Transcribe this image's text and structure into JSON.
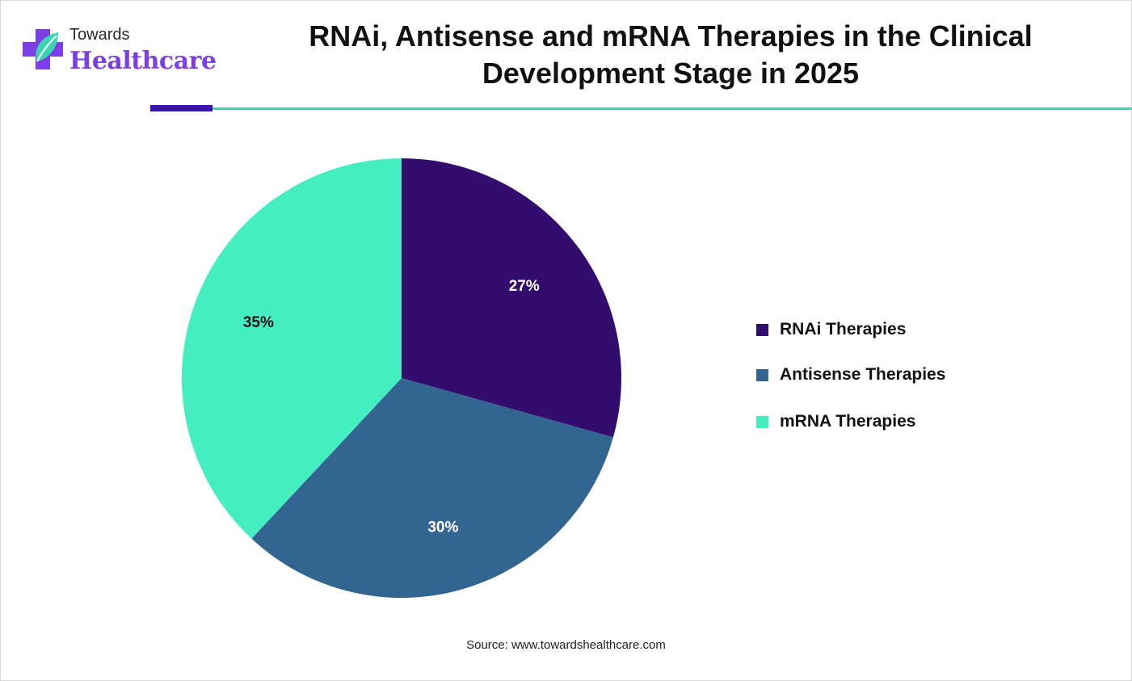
{
  "brand": {
    "line1": "Towards",
    "line2": "Healthcare"
  },
  "title": "RNAi, Antisense and mRNA Therapies in the Clinical Development Stage in 2025",
  "source": "Source: www.towardshealthcare.com",
  "chart_data": {
    "type": "pie",
    "title": "RNAi, Antisense and mRNA Therapies in the Clinical Development Stage in 2025",
    "categories": [
      "RNAi Therapies",
      "Antisense Therapies",
      "mRNA Therapies"
    ],
    "values": [
      27,
      30,
      35
    ],
    "labels": [
      "27%",
      "30%",
      "35%"
    ],
    "colors": [
      "#330d6e",
      "#336591",
      "#44eec1"
    ],
    "label_colors": [
      "#ffffff",
      "#ffffff",
      "#111111"
    ],
    "start_angle": "12 o'clock",
    "direction": "clockwise",
    "legend_position": "right"
  }
}
